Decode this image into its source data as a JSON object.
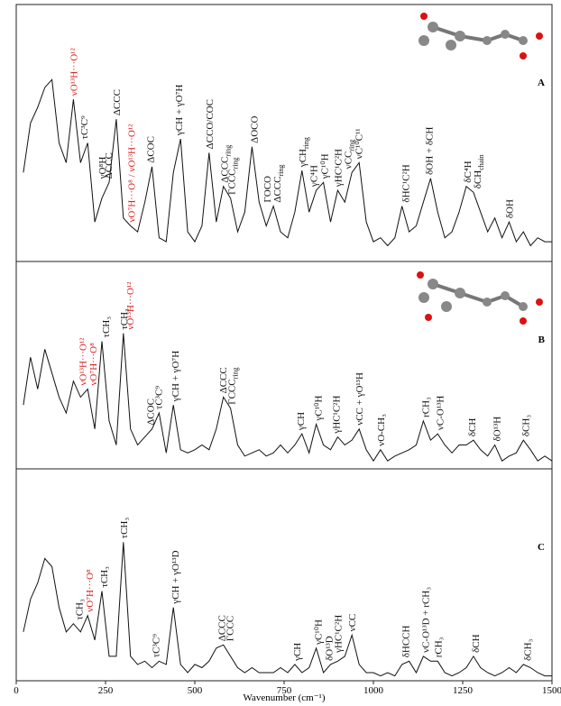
{
  "chart_data": [
    {
      "type": "line",
      "label": "A",
      "color": "#111111",
      "xlim": [
        0,
        1500
      ],
      "ylim": [
        0,
        130
      ],
      "x": [
        20,
        40,
        60,
        80,
        100,
        120,
        140,
        160,
        180,
        200,
        220,
        240,
        260,
        280,
        300,
        320,
        340,
        360,
        380,
        400,
        420,
        440,
        460,
        480,
        500,
        520,
        540,
        560,
        580,
        600,
        620,
        640,
        660,
        680,
        700,
        720,
        740,
        760,
        780,
        800,
        820,
        840,
        860,
        880,
        900,
        920,
        940,
        960,
        980,
        1000,
        1020,
        1040,
        1060,
        1080,
        1100,
        1120,
        1140,
        1160,
        1180,
        1200,
        1220,
        1240,
        1260,
        1280,
        1300,
        1320,
        1340,
        1360,
        1380,
        1400,
        1420,
        1440,
        1460,
        1480,
        1500
      ],
      "values": [
        45,
        70,
        78,
        88,
        92,
        60,
        50,
        82,
        50,
        60,
        20,
        32,
        40,
        72,
        22,
        18,
        15,
        30,
        48,
        12,
        10,
        45,
        62,
        15,
        10,
        18,
        55,
        20,
        38,
        32,
        15,
        25,
        58,
        30,
        18,
        28,
        15,
        12,
        25,
        46,
        25,
        36,
        40,
        20,
        36,
        30,
        45,
        50,
        20,
        10,
        12,
        8,
        12,
        28,
        15,
        18,
        30,
        42,
        25,
        12,
        15,
        25,
        38,
        35,
        25,
        15,
        22,
        12,
        20,
        10,
        15,
        8,
        12,
        10,
        10
      ],
      "annotations": [
        {
          "x": 160,
          "text": "νO¹³H···O¹²",
          "color": "#d42020"
        },
        {
          "x": 190,
          "text": "τC³C⁹"
        },
        {
          "x": 240,
          "text": "γO⁸H"
        },
        {
          "x": 258,
          "text": "ΔCCC"
        },
        {
          "x": 280,
          "text": "ΔCCC"
        },
        {
          "x": 322,
          "text": "νO⁷H···O⁸ / νO¹³H···O¹²",
          "color": "#d42020"
        },
        {
          "x": 375,
          "text": "ΔCOC"
        },
        {
          "x": 455,
          "text": "γCH + γO⁷H"
        },
        {
          "x": 540,
          "text": "ΔCCO/COC"
        },
        {
          "x": 582,
          "text": "ΔCCC",
          "sub": "ring"
        },
        {
          "x": 602,
          "text": "ΓCCC",
          "sub": "ring"
        },
        {
          "x": 665,
          "text": "ΔOCO"
        },
        {
          "x": 702,
          "text": "ΓOCO"
        },
        {
          "x": 730,
          "text": "ΔCCC",
          "sub": "ring"
        },
        {
          "x": 800,
          "text": "γCH",
          "sub": "ring"
        },
        {
          "x": 832,
          "text": "γC⁴H"
        },
        {
          "x": 862,
          "text": "γC¹⁰H"
        },
        {
          "x": 900,
          "text": "γHC¹C²H"
        },
        {
          "x": 928,
          "text": "νCC",
          "sub": "ring"
        },
        {
          "x": 958,
          "text": "νC¹⁰C¹¹"
        },
        {
          "x": 1090,
          "text": "δHC¹C²H"
        },
        {
          "x": 1155,
          "text": "δOH + δCH"
        },
        {
          "x": 1262,
          "text": "δC⁴H"
        },
        {
          "x": 1290,
          "text": "δCH",
          "sub": "chain"
        },
        {
          "x": 1380,
          "text": "δOH"
        }
      ]
    },
    {
      "type": "line",
      "label": "B",
      "color": "#111111",
      "xlim": [
        0,
        1500
      ],
      "ylim": [
        0,
        130
      ],
      "x": [
        20,
        40,
        60,
        80,
        100,
        120,
        140,
        160,
        180,
        200,
        220,
        240,
        260,
        280,
        300,
        320,
        340,
        360,
        380,
        400,
        420,
        440,
        460,
        480,
        500,
        520,
        540,
        560,
        580,
        600,
        620,
        640,
        660,
        680,
        700,
        720,
        740,
        760,
        780,
        800,
        820,
        840,
        860,
        880,
        900,
        920,
        940,
        960,
        980,
        1000,
        1020,
        1040,
        1060,
        1080,
        1100,
        1120,
        1140,
        1160,
        1180,
        1200,
        1220,
        1240,
        1260,
        1280,
        1300,
        1320,
        1340,
        1360,
        1380,
        1400,
        1420,
        1440,
        1460,
        1480,
        1500
      ],
      "values": [
        40,
        70,
        50,
        75,
        60,
        45,
        35,
        55,
        45,
        50,
        25,
        80,
        30,
        15,
        85,
        25,
        15,
        20,
        25,
        35,
        10,
        40,
        12,
        10,
        12,
        15,
        12,
        25,
        45,
        38,
        15,
        8,
        10,
        12,
        8,
        10,
        15,
        10,
        15,
        22,
        10,
        28,
        15,
        12,
        20,
        15,
        18,
        25,
        12,
        5,
        12,
        5,
        8,
        10,
        12,
        15,
        30,
        18,
        22,
        15,
        10,
        15,
        15,
        18,
        12,
        8,
        15,
        5,
        8,
        10,
        18,
        12,
        5,
        8,
        5
      ],
      "annotations": [
        {
          "x": 185,
          "text": "νO¹³H···O¹²",
          "color": "#d42020"
        },
        {
          "x": 215,
          "text": "νO⁷H···O⁸",
          "color": "#d42020"
        },
        {
          "x": 250,
          "text": "τCH₃"
        },
        {
          "x": 300,
          "text": "τCH₃"
        },
        {
          "x": 318,
          "text": "νO¹³H···O¹²",
          "color": "#d42020"
        },
        {
          "x": 375,
          "text": "ΔCOC"
        },
        {
          "x": 398,
          "text": "τC³C⁹"
        },
        {
          "x": 445,
          "text": "γCH + γO⁷H"
        },
        {
          "x": 578,
          "text": "ΔCCC"
        },
        {
          "x": 602,
          "text": "ΓCCC",
          "sub": "ring"
        },
        {
          "x": 795,
          "text": "γCH"
        },
        {
          "x": 845,
          "text": "γC¹⁰H"
        },
        {
          "x": 895,
          "text": "γHC¹C²H"
        },
        {
          "x": 960,
          "text": "νCC + γO¹³H"
        },
        {
          "x": 1020,
          "text": "νO-CH₃"
        },
        {
          "x": 1145,
          "text": "rCH₃"
        },
        {
          "x": 1185,
          "text": "νC-O¹³H"
        },
        {
          "x": 1275,
          "text": "δCH"
        },
        {
          "x": 1345,
          "text": "δO¹³H"
        },
        {
          "x": 1425,
          "text": "δCH₃"
        }
      ]
    },
    {
      "type": "line",
      "label": "C",
      "color": "#111111",
      "xlim": [
        0,
        1500
      ],
      "ylim": [
        0,
        130
      ],
      "xticks": [
        0,
        250,
        500,
        750,
        1000,
        1250,
        1500
      ],
      "xlabel": "Wavenumber (cm⁻¹)",
      "x": [
        20,
        40,
        60,
        80,
        100,
        120,
        140,
        160,
        180,
        200,
        220,
        240,
        260,
        280,
        300,
        320,
        340,
        360,
        380,
        400,
        420,
        440,
        460,
        480,
        500,
        520,
        540,
        560,
        580,
        600,
        620,
        640,
        660,
        680,
        700,
        720,
        740,
        760,
        780,
        800,
        820,
        840,
        860,
        880,
        900,
        920,
        940,
        960,
        980,
        1000,
        1020,
        1040,
        1060,
        1080,
        1100,
        1120,
        1140,
        1160,
        1180,
        1200,
        1220,
        1240,
        1260,
        1280,
        1300,
        1320,
        1340,
        1360,
        1380,
        1400,
        1420,
        1440,
        1460,
        1480,
        1500
      ],
      "values": [
        30,
        50,
        60,
        75,
        70,
        45,
        30,
        35,
        30,
        40,
        25,
        55,
        15,
        15,
        85,
        15,
        10,
        12,
        8,
        12,
        10,
        45,
        10,
        5,
        10,
        8,
        12,
        20,
        22,
        15,
        8,
        5,
        8,
        5,
        5,
        5,
        8,
        5,
        10,
        5,
        8,
        20,
        5,
        10,
        12,
        15,
        28,
        10,
        5,
        5,
        3,
        5,
        3,
        10,
        12,
        5,
        15,
        12,
        12,
        5,
        3,
        5,
        8,
        15,
        8,
        5,
        3,
        5,
        8,
        5,
        10,
        8,
        5,
        3,
        3
      ],
      "annotations": [
        {
          "x": 175,
          "text": "τCH₃"
        },
        {
          "x": 205,
          "text": "νO⁷H···O⁸",
          "color": "#d42020"
        },
        {
          "x": 245,
          "text": "τCH₃"
        },
        {
          "x": 300,
          "text": "τCH₃"
        },
        {
          "x": 390,
          "text": "τC³C⁹"
        },
        {
          "x": 445,
          "text": "γCH + γO¹³D"
        },
        {
          "x": 575,
          "text": "ΔCCC"
        },
        {
          "x": 597,
          "text": "ΓCCC"
        },
        {
          "x": 785,
          "text": "γCH"
        },
        {
          "x": 845,
          "text": "γC¹⁰H"
        },
        {
          "x": 875,
          "text": "δO¹³D"
        },
        {
          "x": 900,
          "text": "γHC¹C²H"
        },
        {
          "x": 940,
          "text": "νCC"
        },
        {
          "x": 1090,
          "text": "δHCCH"
        },
        {
          "x": 1145,
          "text": "νC-O¹³D + rCH₃"
        },
        {
          "x": 1180,
          "text": "rCH₃"
        },
        {
          "x": 1285,
          "text": "δCH"
        },
        {
          "x": 1430,
          "text": "δCH₃"
        }
      ]
    }
  ]
}
